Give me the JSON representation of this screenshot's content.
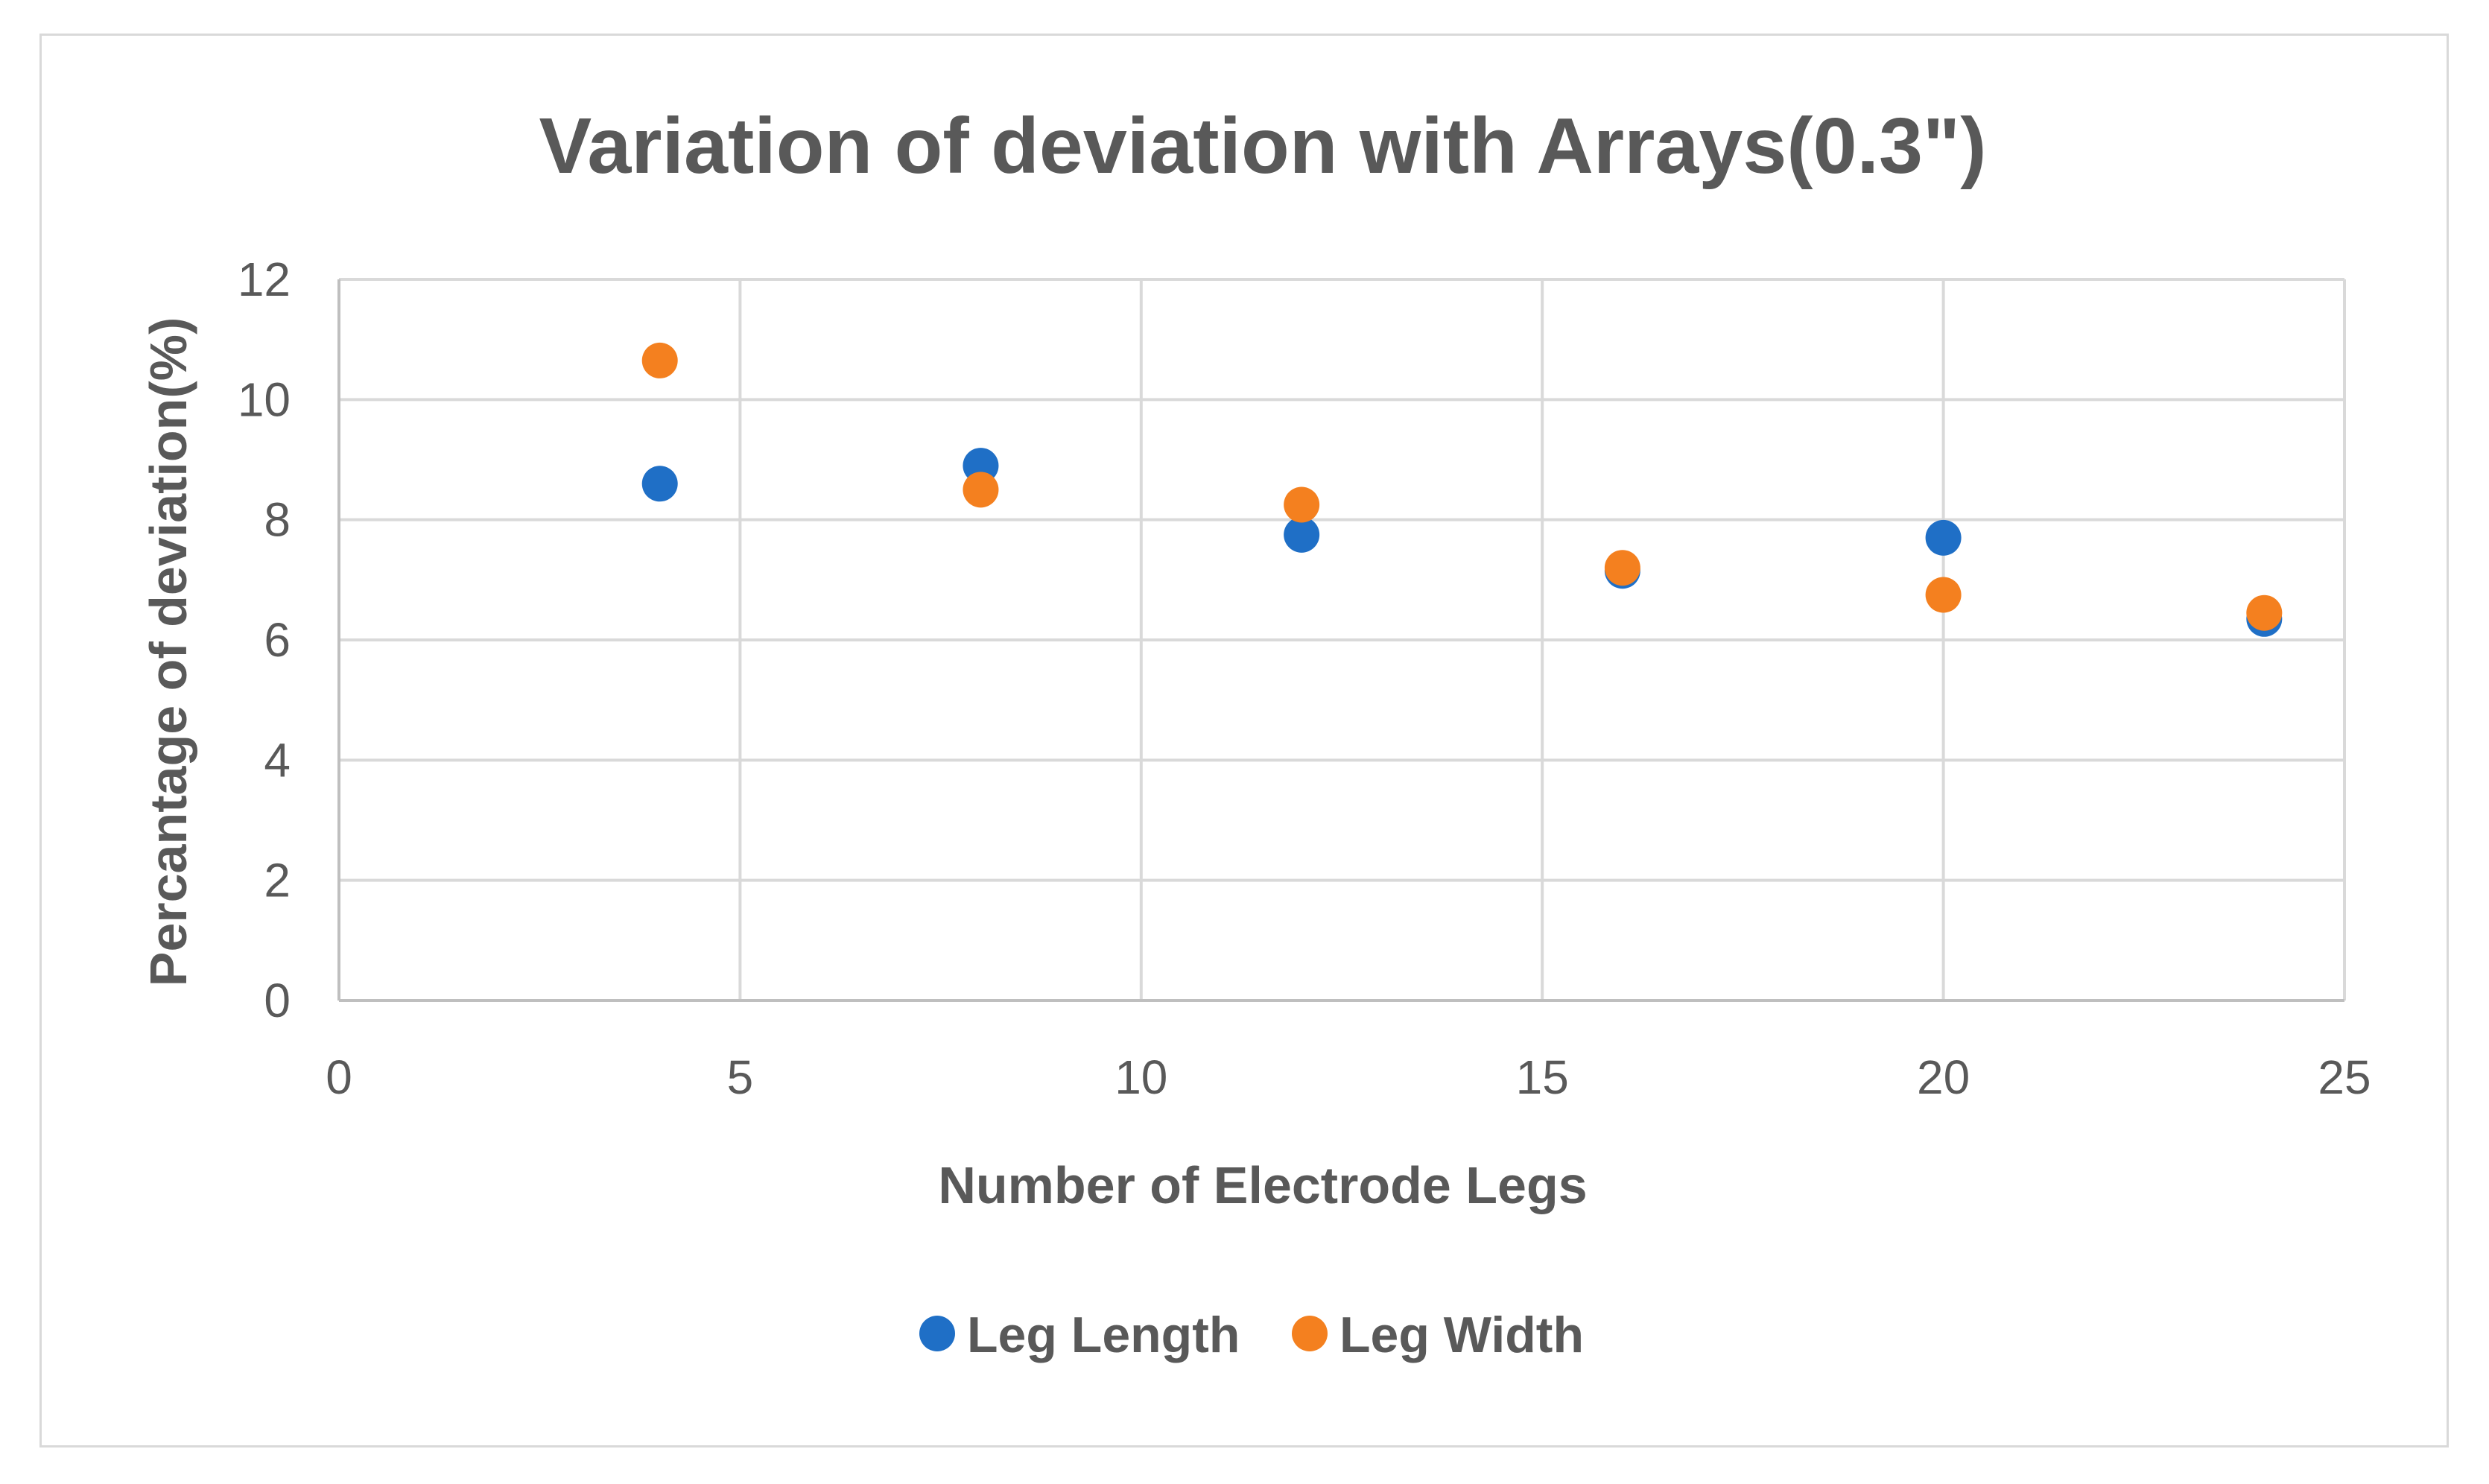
{
  "chart_data": {
    "type": "scatter",
    "title": "Variation of deviation with Arrays(0.3\")",
    "xlabel": "Number of Electrode Legs",
    "ylabel": "Percantage of deviation(%)",
    "xlim": [
      0,
      25
    ],
    "ylim": [
      0,
      12
    ],
    "x_ticks": [
      0,
      5,
      10,
      15,
      20,
      25
    ],
    "y_ticks": [
      0,
      2,
      4,
      6,
      8,
      10,
      12
    ],
    "grid": true,
    "legend_position": "bottom",
    "series": [
      {
        "name": "Leg Length",
        "color": "#1f6fc6",
        "x": [
          4,
          8,
          12,
          16,
          20,
          24
        ],
        "y": [
          8.6,
          8.9,
          7.75,
          7.15,
          7.7,
          6.35
        ]
      },
      {
        "name": "Leg Width",
        "color": "#f4801f",
        "x": [
          4,
          8,
          12,
          16,
          20,
          24
        ],
        "y": [
          10.65,
          8.5,
          8.25,
          7.2,
          6.75,
          6.45
        ]
      }
    ]
  }
}
